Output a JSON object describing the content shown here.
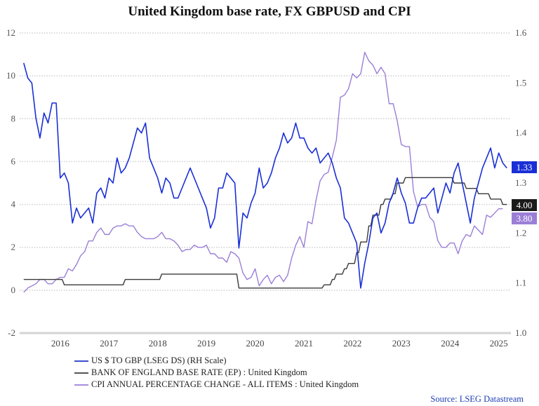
{
  "chart_data": {
    "type": "line",
    "title": "United Kingdom base rate, FX GBPUSD and CPI",
    "x_range": [
      "2015-09",
      "2025-10"
    ],
    "x_ticks": [
      "2016",
      "2017",
      "2018",
      "2019",
      "2020",
      "2021",
      "2022",
      "2023",
      "2024",
      "2025"
    ],
    "y_left": {
      "range": [
        -2,
        12
      ],
      "ticks": [
        "-2",
        "0",
        "2",
        "4",
        "6",
        "8",
        "10",
        "12"
      ]
    },
    "y_right": {
      "range": [
        1.0,
        1.6
      ],
      "ticks": [
        "1.0",
        "1.1",
        "1.2",
        "1.3",
        "1.4",
        "1.5",
        "1.6"
      ]
    },
    "grid": true,
    "legend_position": "bottom-left",
    "series": [
      {
        "name": "US $ TO GBP (LSEG DS) (RH Scale)",
        "axis": "right",
        "color": "#1a2fd6",
        "last_label": "1.33",
        "points": [
          [
            "2015-10",
            1.54
          ],
          [
            "2015-11",
            1.51
          ],
          [
            "2015-12",
            1.5
          ],
          [
            "2016-01",
            1.43
          ],
          [
            "2016-02",
            1.39
          ],
          [
            "2016-03",
            1.44
          ],
          [
            "2016-04",
            1.42
          ],
          [
            "2016-05",
            1.46
          ],
          [
            "2016-06",
            1.46
          ],
          [
            "2016-07",
            1.31
          ],
          [
            "2016-08",
            1.32
          ],
          [
            "2016-09",
            1.3
          ],
          [
            "2016-10",
            1.22
          ],
          [
            "2016-11",
            1.25
          ],
          [
            "2016-12",
            1.23
          ],
          [
            "2017-01",
            1.24
          ],
          [
            "2017-02",
            1.25
          ],
          [
            "2017-03",
            1.22
          ],
          [
            "2017-04",
            1.28
          ],
          [
            "2017-05",
            1.29
          ],
          [
            "2017-06",
            1.27
          ],
          [
            "2017-07",
            1.31
          ],
          [
            "2017-08",
            1.3
          ],
          [
            "2017-09",
            1.35
          ],
          [
            "2017-10",
            1.32
          ],
          [
            "2017-11",
            1.33
          ],
          [
            "2017-12",
            1.35
          ],
          [
            "2018-01",
            1.38
          ],
          [
            "2018-02",
            1.41
          ],
          [
            "2018-03",
            1.4
          ],
          [
            "2018-04",
            1.42
          ],
          [
            "2018-05",
            1.35
          ],
          [
            "2018-06",
            1.33
          ],
          [
            "2018-07",
            1.31
          ],
          [
            "2018-08",
            1.28
          ],
          [
            "2018-09",
            1.31
          ],
          [
            "2018-10",
            1.3
          ],
          [
            "2018-11",
            1.27
          ],
          [
            "2018-12",
            1.27
          ],
          [
            "2019-01",
            1.29
          ],
          [
            "2019-02",
            1.31
          ],
          [
            "2019-03",
            1.33
          ],
          [
            "2019-04",
            1.31
          ],
          [
            "2019-05",
            1.29
          ],
          [
            "2019-06",
            1.27
          ],
          [
            "2019-07",
            1.25
          ],
          [
            "2019-08",
            1.21
          ],
          [
            "2019-09",
            1.23
          ],
          [
            "2019-10",
            1.29
          ],
          [
            "2019-11",
            1.29
          ],
          [
            "2019-12",
            1.32
          ],
          [
            "2020-01",
            1.31
          ],
          [
            "2020-02",
            1.3
          ],
          [
            "2020-03",
            1.17
          ],
          [
            "2020-04",
            1.24
          ],
          [
            "2020-05",
            1.23
          ],
          [
            "2020-06",
            1.26
          ],
          [
            "2020-07",
            1.28
          ],
          [
            "2020-08",
            1.33
          ],
          [
            "2020-09",
            1.29
          ],
          [
            "2020-10",
            1.3
          ],
          [
            "2020-11",
            1.32
          ],
          [
            "2020-12",
            1.35
          ],
          [
            "2021-01",
            1.37
          ],
          [
            "2021-02",
            1.4
          ],
          [
            "2021-03",
            1.38
          ],
          [
            "2021-04",
            1.39
          ],
          [
            "2021-05",
            1.42
          ],
          [
            "2021-06",
            1.39
          ],
          [
            "2021-07",
            1.39
          ],
          [
            "2021-08",
            1.37
          ],
          [
            "2021-09",
            1.36
          ],
          [
            "2021-10",
            1.37
          ],
          [
            "2021-11",
            1.34
          ],
          [
            "2021-12",
            1.35
          ],
          [
            "2022-01",
            1.36
          ],
          [
            "2022-02",
            1.34
          ],
          [
            "2022-03",
            1.31
          ],
          [
            "2022-04",
            1.29
          ],
          [
            "2022-05",
            1.23
          ],
          [
            "2022-06",
            1.22
          ],
          [
            "2022-07",
            1.2
          ],
          [
            "2022-08",
            1.18
          ],
          [
            "2022-09",
            1.09
          ],
          [
            "2022-10",
            1.14
          ],
          [
            "2022-11",
            1.18
          ],
          [
            "2022-12",
            1.23
          ],
          [
            "2023-01",
            1.24
          ],
          [
            "2023-02",
            1.2
          ],
          [
            "2023-03",
            1.22
          ],
          [
            "2023-04",
            1.26
          ],
          [
            "2023-05",
            1.28
          ],
          [
            "2023-06",
            1.31
          ],
          [
            "2023-07",
            1.28
          ],
          [
            "2023-08",
            1.26
          ],
          [
            "2023-09",
            1.22
          ],
          [
            "2023-10",
            1.22
          ],
          [
            "2023-11",
            1.25
          ],
          [
            "2023-12",
            1.27
          ],
          [
            "2024-01",
            1.27
          ],
          [
            "2024-02",
            1.28
          ],
          [
            "2024-03",
            1.29
          ],
          [
            "2024-04",
            1.24
          ],
          [
            "2024-05",
            1.27
          ],
          [
            "2024-06",
            1.3
          ],
          [
            "2024-07",
            1.28
          ],
          [
            "2024-08",
            1.32
          ],
          [
            "2024-09",
            1.34
          ],
          [
            "2024-10",
            1.3
          ],
          [
            "2024-11",
            1.26
          ],
          [
            "2024-12",
            1.22
          ],
          [
            "2025-01",
            1.27
          ],
          [
            "2025-02",
            1.3
          ],
          [
            "2025-03",
            1.33
          ],
          [
            "2025-04",
            1.35
          ],
          [
            "2025-05",
            1.37
          ],
          [
            "2025-06",
            1.33
          ],
          [
            "2025-07",
            1.36
          ],
          [
            "2025-08",
            1.34
          ],
          [
            "2025-09",
            1.33
          ]
        ]
      },
      {
        "name": "BANK OF ENGLAND BASE RATE (EP) : United Kingdom",
        "axis": "left",
        "color": "#3a3a3a",
        "last_label": "4.00",
        "points": [
          [
            "2015-10",
            0.5
          ],
          [
            "2016-08",
            0.25
          ],
          [
            "2017-11",
            0.5
          ],
          [
            "2018-08",
            0.75
          ],
          [
            "2020-03",
            0.1
          ],
          [
            "2021-12",
            0.25
          ],
          [
            "2022-02",
            0.5
          ],
          [
            "2022-03",
            0.75
          ],
          [
            "2022-05",
            1.0
          ],
          [
            "2022-06",
            1.25
          ],
          [
            "2022-08",
            1.75
          ],
          [
            "2022-09",
            2.25
          ],
          [
            "2022-11",
            3.0
          ],
          [
            "2022-12",
            3.5
          ],
          [
            "2023-02",
            4.0
          ],
          [
            "2023-03",
            4.25
          ],
          [
            "2023-05",
            4.5
          ],
          [
            "2023-06",
            5.0
          ],
          [
            "2023-08",
            5.25
          ],
          [
            "2024-08",
            5.0
          ],
          [
            "2024-11",
            4.75
          ],
          [
            "2025-02",
            4.5
          ],
          [
            "2025-05",
            4.25
          ],
          [
            "2025-08",
            4.0
          ],
          [
            "2025-09",
            4.0
          ]
        ]
      },
      {
        "name": "CPI ANNUAL PERCENTAGE CHANGE - ALL ITEMS : United Kingdom",
        "axis": "left",
        "color": "#9b7fd6",
        "last_label": "3.80",
        "points": [
          [
            "2015-10",
            -0.1
          ],
          [
            "2015-11",
            0.1
          ],
          [
            "2015-12",
            0.2
          ],
          [
            "2016-01",
            0.3
          ],
          [
            "2016-02",
            0.5
          ],
          [
            "2016-03",
            0.5
          ],
          [
            "2016-04",
            0.3
          ],
          [
            "2016-05",
            0.3
          ],
          [
            "2016-06",
            0.5
          ],
          [
            "2016-07",
            0.6
          ],
          [
            "2016-08",
            0.6
          ],
          [
            "2016-09",
            1.0
          ],
          [
            "2016-10",
            0.9
          ],
          [
            "2016-11",
            1.2
          ],
          [
            "2016-12",
            1.6
          ],
          [
            "2017-01",
            1.8
          ],
          [
            "2017-02",
            2.3
          ],
          [
            "2017-03",
            2.3
          ],
          [
            "2017-04",
            2.7
          ],
          [
            "2017-05",
            2.9
          ],
          [
            "2017-06",
            2.6
          ],
          [
            "2017-07",
            2.6
          ],
          [
            "2017-08",
            2.9
          ],
          [
            "2017-09",
            3.0
          ],
          [
            "2017-10",
            3.0
          ],
          [
            "2017-11",
            3.1
          ],
          [
            "2017-12",
            3.0
          ],
          [
            "2018-01",
            3.0
          ],
          [
            "2018-02",
            2.7
          ],
          [
            "2018-03",
            2.5
          ],
          [
            "2018-04",
            2.4
          ],
          [
            "2018-05",
            2.4
          ],
          [
            "2018-06",
            2.4
          ],
          [
            "2018-07",
            2.5
          ],
          [
            "2018-08",
            2.7
          ],
          [
            "2018-09",
            2.4
          ],
          [
            "2018-10",
            2.4
          ],
          [
            "2018-11",
            2.3
          ],
          [
            "2018-12",
            2.1
          ],
          [
            "2019-01",
            1.8
          ],
          [
            "2019-02",
            1.9
          ],
          [
            "2019-03",
            1.9
          ],
          [
            "2019-04",
            2.1
          ],
          [
            "2019-05",
            2.0
          ],
          [
            "2019-06",
            2.0
          ],
          [
            "2019-07",
            2.1
          ],
          [
            "2019-08",
            1.7
          ],
          [
            "2019-09",
            1.7
          ],
          [
            "2019-10",
            1.5
          ],
          [
            "2019-11",
            1.5
          ],
          [
            "2019-12",
            1.3
          ],
          [
            "2020-01",
            1.8
          ],
          [
            "2020-02",
            1.7
          ],
          [
            "2020-03",
            1.5
          ],
          [
            "2020-04",
            0.8
          ],
          [
            "2020-05",
            0.5
          ],
          [
            "2020-06",
            0.6
          ],
          [
            "2020-07",
            1.0
          ],
          [
            "2020-08",
            0.2
          ],
          [
            "2020-09",
            0.5
          ],
          [
            "2020-10",
            0.7
          ],
          [
            "2020-11",
            0.3
          ],
          [
            "2020-12",
            0.6
          ],
          [
            "2021-01",
            0.7
          ],
          [
            "2021-02",
            0.4
          ],
          [
            "2021-03",
            0.7
          ],
          [
            "2021-04",
            1.5
          ],
          [
            "2021-05",
            2.1
          ],
          [
            "2021-06",
            2.5
          ],
          [
            "2021-07",
            2.0
          ],
          [
            "2021-08",
            3.2
          ],
          [
            "2021-09",
            3.1
          ],
          [
            "2021-10",
            4.2
          ],
          [
            "2021-11",
            5.1
          ],
          [
            "2021-12",
            5.4
          ],
          [
            "2022-01",
            5.5
          ],
          [
            "2022-02",
            6.2
          ],
          [
            "2022-03",
            7.0
          ],
          [
            "2022-04",
            9.0
          ],
          [
            "2022-05",
            9.1
          ],
          [
            "2022-06",
            9.4
          ],
          [
            "2022-07",
            10.1
          ],
          [
            "2022-08",
            9.9
          ],
          [
            "2022-09",
            10.1
          ],
          [
            "2022-10",
            11.1
          ],
          [
            "2022-11",
            10.7
          ],
          [
            "2022-12",
            10.5
          ],
          [
            "2023-01",
            10.1
          ],
          [
            "2023-02",
            10.4
          ],
          [
            "2023-03",
            10.1
          ],
          [
            "2023-04",
            8.7
          ],
          [
            "2023-05",
            8.7
          ],
          [
            "2023-06",
            7.9
          ],
          [
            "2023-07",
            6.8
          ],
          [
            "2023-08",
            6.7
          ],
          [
            "2023-09",
            6.7
          ],
          [
            "2023-10",
            4.6
          ],
          [
            "2023-11",
            3.9
          ],
          [
            "2023-12",
            4.0
          ],
          [
            "2024-01",
            4.0
          ],
          [
            "2024-02",
            3.4
          ],
          [
            "2024-03",
            3.2
          ],
          [
            "2024-04",
            2.3
          ],
          [
            "2024-05",
            2.0
          ],
          [
            "2024-06",
            2.0
          ],
          [
            "2024-07",
            2.2
          ],
          [
            "2024-08",
            2.2
          ],
          [
            "2024-09",
            1.7
          ],
          [
            "2024-10",
            2.3
          ],
          [
            "2024-11",
            2.6
          ],
          [
            "2024-12",
            2.5
          ],
          [
            "2025-01",
            3.0
          ],
          [
            "2025-02",
            2.8
          ],
          [
            "2025-03",
            2.6
          ],
          [
            "2025-04",
            3.5
          ],
          [
            "2025-05",
            3.4
          ],
          [
            "2025-06",
            3.6
          ],
          [
            "2025-07",
            3.8
          ],
          [
            "2025-08",
            3.8
          ]
        ]
      }
    ],
    "source": "Source: LSEG Datastream"
  }
}
